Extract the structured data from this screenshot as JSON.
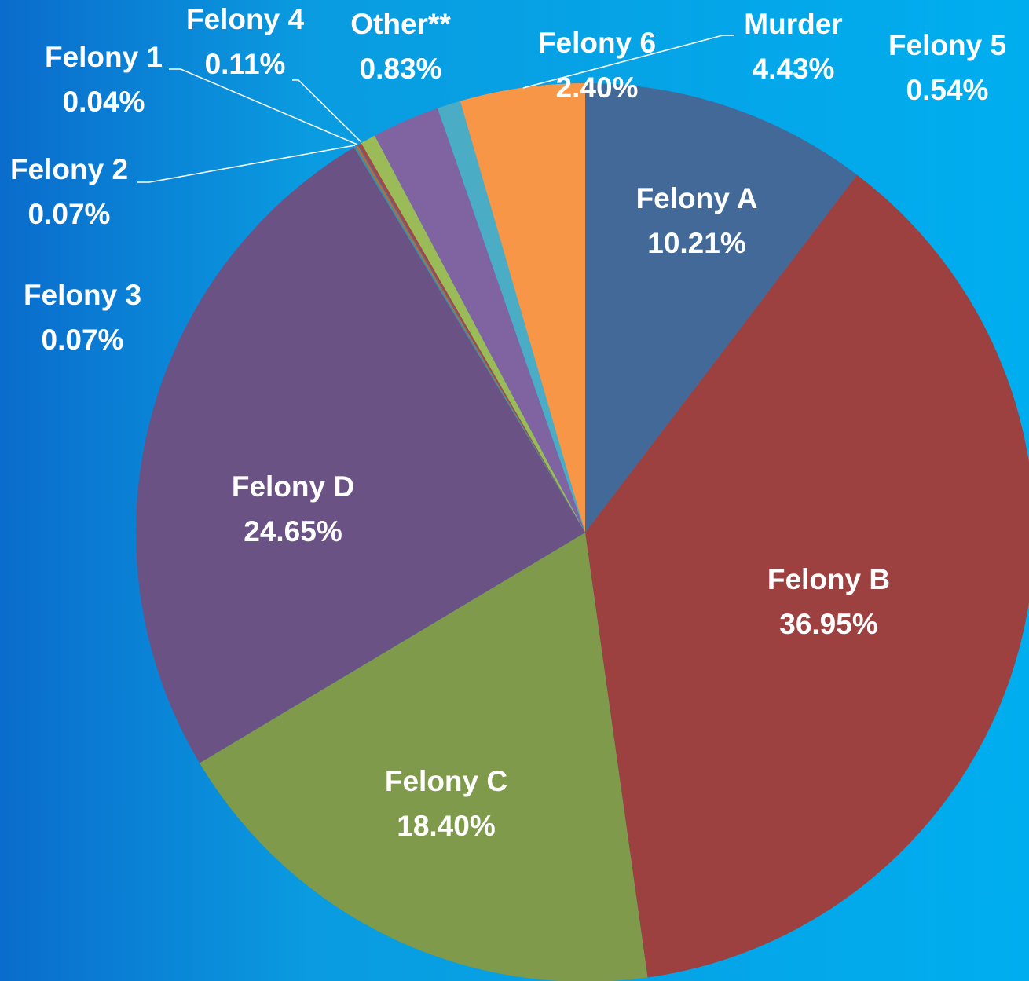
{
  "chart_data": {
    "type": "pie",
    "categories": [
      "Felony A",
      "Felony B",
      "Felony C",
      "Felony D",
      "Felony 3",
      "Felony 2",
      "Felony 1",
      "Felony 4",
      "Felony 5",
      "Felony 6",
      "Other**",
      "Murder"
    ],
    "values": [
      10.21,
      36.95,
      18.4,
      24.65,
      0.07,
      0.07,
      0.04,
      0.11,
      0.54,
      2.4,
      0.83,
      4.43
    ],
    "value_labels": [
      "10.21%",
      "36.95%",
      "18.40%",
      "24.65%",
      "0.07%",
      "0.07%",
      "0.04%",
      "0.11%",
      "0.54%",
      "2.40%",
      "0.83%",
      "4.43%"
    ],
    "colors": [
      "#436998",
      "#9c4040",
      "#7f9a4a",
      "#6b5285",
      "#3c8fa8",
      "#c46a2e",
      "#4a6fa0",
      "#a84545",
      "#9bbb59",
      "#8064a2",
      "#4bacc6",
      "#f79646"
    ]
  }
}
